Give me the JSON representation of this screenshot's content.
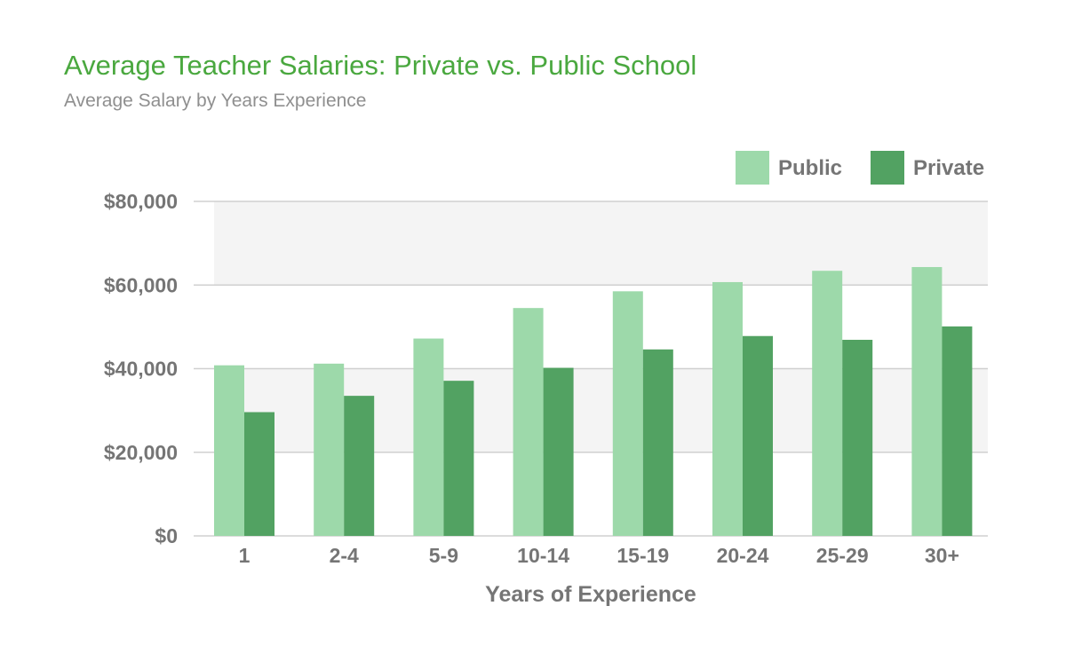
{
  "title": "Average Teacher Salaries: Private vs. Public School",
  "subtitle": "Average Salary by Years Experience",
  "colors": {
    "title": "#4aa83f",
    "public": "#9dd9aa",
    "private": "#52a262",
    "band": "#f4f4f4",
    "grid": "#d0d0d0",
    "text": "#757575"
  },
  "chart_data": {
    "type": "bar",
    "title": "Average Teacher Salaries: Private vs. Public School",
    "subtitle": "Average Salary by Years Experience",
    "xlabel": "Years of Experience",
    "ylabel": "",
    "categories": [
      "1",
      "2-4",
      "5-9",
      "10-14",
      "15-19",
      "20-24",
      "25-29",
      "30+"
    ],
    "series": [
      {
        "name": "Public",
        "values": [
          40800,
          41200,
          47200,
          54500,
          58500,
          60700,
          63400,
          64300
        ]
      },
      {
        "name": "Private",
        "values": [
          29600,
          33500,
          37100,
          40200,
          44600,
          47800,
          46900,
          50100
        ]
      }
    ],
    "ylim": [
      0,
      80000
    ],
    "yticks": [
      0,
      20000,
      40000,
      60000,
      80000
    ],
    "ytick_labels": [
      "$0",
      "$20,000",
      "$40,000",
      "$60,000",
      "$80,000"
    ],
    "legend_position": "top-right",
    "grid": true
  }
}
